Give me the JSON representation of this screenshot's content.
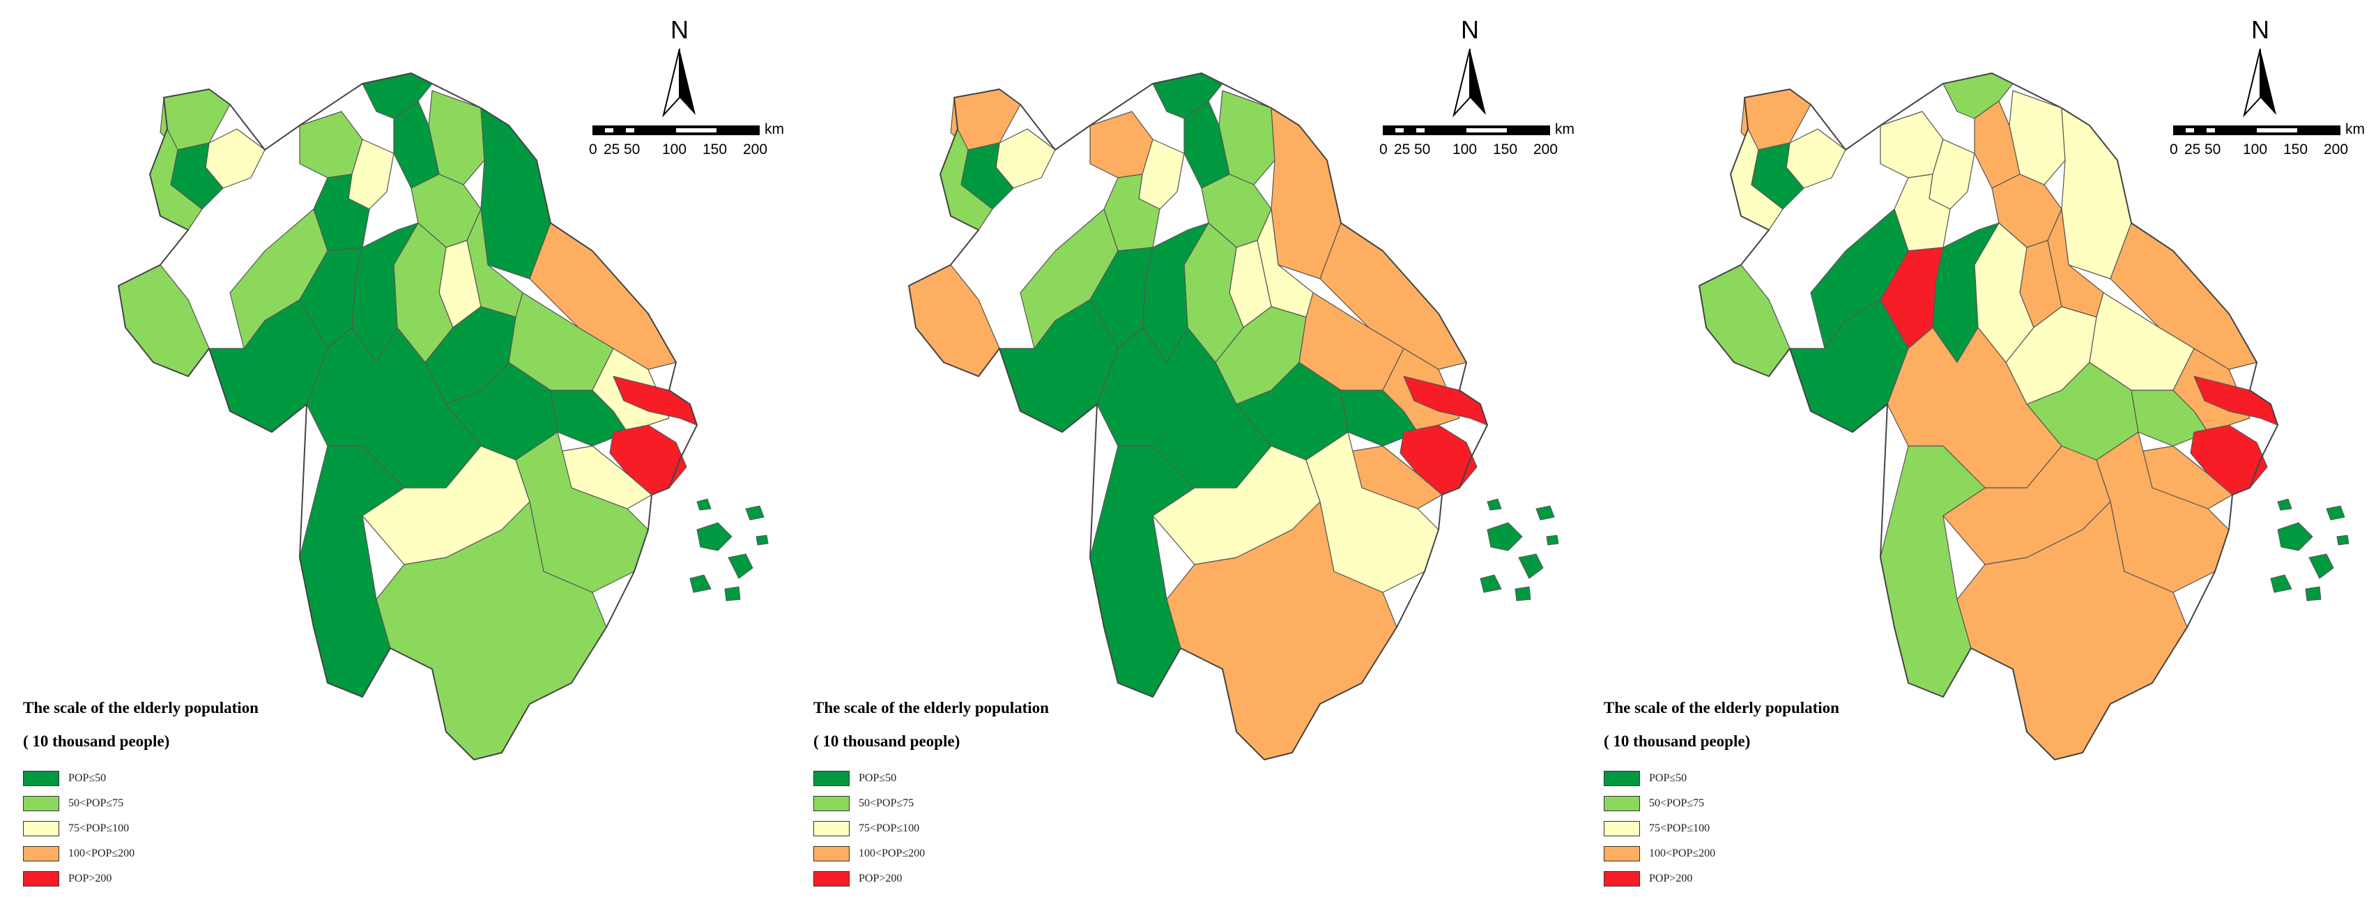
{
  "colors": {
    "c1": "#00993f",
    "c2": "#8cd85d",
    "c3": "#ffffc2",
    "c4": "#fdae61",
    "c5": "#f71d27",
    "border": "#555555"
  },
  "legend": {
    "title_line1": "The scale of the elderly population",
    "title_line2": "( 10 thousand people)",
    "items": [
      {
        "label": "POP≤50",
        "color_key": "c1"
      },
      {
        "label": "50<POP≤75",
        "color_key": "c2"
      },
      {
        "label": "75<POP≤100",
        "color_key": "c3"
      },
      {
        "label": "100<POP≤200",
        "color_key": "c4"
      },
      {
        "label": "POP>200",
        "color_key": "c5"
      }
    ]
  },
  "north_arrow": {
    "label": "N",
    "icon": "north-arrow-icon"
  },
  "scale_bar": {
    "unit": "km",
    "ticks": [
      "0",
      "25",
      "50",
      "100",
      "150",
      "200"
    ]
  },
  "maps": [
    {
      "id": "map-1",
      "regions": [
        "c2",
        "c3",
        "c2",
        "c1",
        "c1",
        "c2",
        "c3",
        "c2",
        "c1",
        "c1",
        "c1",
        "c2",
        "c2",
        "c3",
        "c4",
        "c2",
        "c1",
        "c1",
        "c2",
        "c1",
        "c1",
        "c3",
        "c5",
        "c5",
        "c3",
        "c2",
        "c2",
        "c1",
        "c1",
        "c1",
        "c3",
        "c2",
        "c1",
        "c2"
      ]
    },
    {
      "id": "map-2",
      "regions": [
        "c4",
        "c3",
        "c2",
        "c1",
        "c1",
        "c4",
        "c3",
        "c2",
        "c1",
        "c2",
        "c4",
        "c2",
        "c3",
        "c3",
        "c4",
        "c2",
        "c1",
        "c2",
        "c4",
        "c1",
        "c1",
        "c4",
        "c5",
        "c5",
        "c4",
        "c2",
        "c4",
        "c1",
        "c1",
        "c1",
        "c3",
        "c3",
        "c1",
        "c4"
      ]
    },
    {
      "id": "map-3",
      "regions": [
        "c4",
        "c3",
        "c3",
        "c1",
        "c2",
        "c3",
        "c3",
        "c3",
        "c4",
        "c3",
        "c3",
        "c4",
        "c4",
        "c4",
        "c4",
        "c3",
        "c1",
        "c3",
        "c3",
        "c2",
        "c2",
        "c4",
        "c5",
        "c5",
        "c4",
        "c1",
        "c2",
        "c1",
        "c5",
        "c4",
        "c4",
        "c4",
        "c2",
        "c4"
      ]
    }
  ]
}
